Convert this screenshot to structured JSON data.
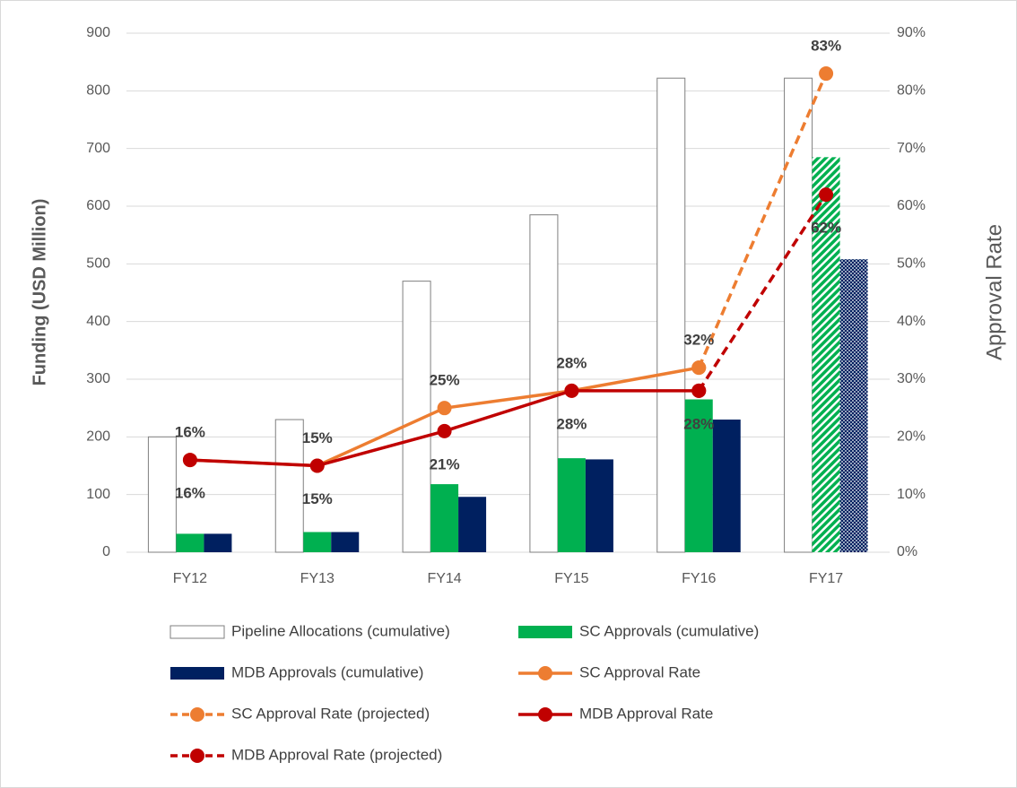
{
  "chart_data": {
    "type": "bar_line",
    "categories": [
      "FY12",
      "FY13",
      "FY14",
      "FY15",
      "FY16",
      "FY17"
    ],
    "ylabel": "Funding (USD Million)",
    "y2label": "Approval Rate",
    "ylim": [
      0,
      900
    ],
    "yticks": [
      0,
      100,
      200,
      300,
      400,
      500,
      600,
      700,
      800,
      900
    ],
    "y2lim": [
      0,
      90
    ],
    "y2ticks": [
      {
        "value": 0,
        "label": "0%"
      },
      {
        "value": 10,
        "label": "10%"
      },
      {
        "value": 20,
        "label": "20%"
      },
      {
        "value": 30,
        "label": "30%"
      },
      {
        "value": 40,
        "label": "40%"
      },
      {
        "value": 50,
        "label": "50%"
      },
      {
        "value": 60,
        "label": "60%"
      },
      {
        "value": 70,
        "label": "70%"
      },
      {
        "value": 80,
        "label": "80%"
      },
      {
        "value": 90,
        "label": "90%"
      }
    ],
    "grid": true,
    "legend": "bottom",
    "series": [
      {
        "name": "Pipeline Allocations (cumulative)",
        "kind": "bar",
        "color": "#ffffff",
        "values": [
          200,
          230,
          470,
          585,
          822,
          822
        ]
      },
      {
        "name": "SC Approvals (cumulative)",
        "kind": "bar",
        "color": "#00b050",
        "projected": [
          false,
          false,
          false,
          false,
          false,
          true
        ],
        "values": [
          32,
          35,
          118,
          163,
          265,
          685
        ]
      },
      {
        "name": "MDB Approvals (cumulative)",
        "kind": "bar",
        "color": "#002060",
        "projected": [
          false,
          false,
          false,
          false,
          false,
          true
        ],
        "values": [
          32,
          35,
          96,
          161,
          230,
          508
        ]
      },
      {
        "name": "SC Approval Rate",
        "kind": "line",
        "axis": "y2",
        "color": "#ed7d31",
        "dashed": false,
        "label_side": "above",
        "values": [
          16,
          15,
          25,
          28,
          32,
          null
        ],
        "value_labels": [
          "16%",
          "15%",
          "25%",
          "28%",
          "32%",
          null
        ]
      },
      {
        "name": "SC Approval Rate (projected)",
        "kind": "line",
        "axis": "y2",
        "color": "#ed7d31",
        "dashed": true,
        "label_side": "above",
        "values": [
          null,
          null,
          null,
          null,
          32,
          83
        ],
        "value_labels": [
          null,
          null,
          null,
          null,
          null,
          "83%"
        ]
      },
      {
        "name": "MDB Approval Rate",
        "kind": "line",
        "axis": "y2",
        "color": "#c00000",
        "dashed": false,
        "label_side": "below",
        "values": [
          16,
          15,
          21,
          28,
          28,
          null
        ],
        "value_labels": [
          "16%",
          "15%",
          "21%",
          "28%",
          "28%",
          null
        ]
      },
      {
        "name": "MDB Approval Rate (projected)",
        "kind": "line",
        "axis": "y2",
        "color": "#c00000",
        "dashed": true,
        "label_side": "below",
        "values": [
          null,
          null,
          null,
          null,
          28,
          62
        ],
        "value_labels": [
          null,
          null,
          null,
          null,
          null,
          "62%"
        ]
      }
    ]
  }
}
